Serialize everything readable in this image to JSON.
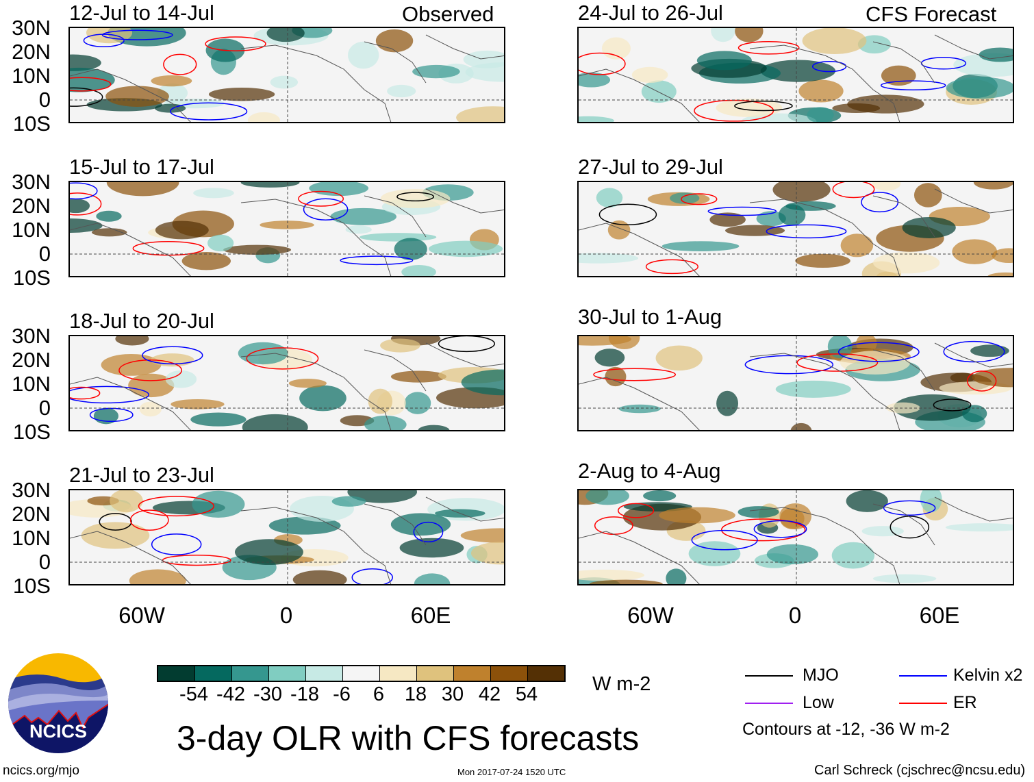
{
  "header": {
    "observed_label": "Observed",
    "forecast_label": "CFS Forecast"
  },
  "panels_left": [
    {
      "title": "12-Jul to 14-Jul"
    },
    {
      "title": "15-Jul to 17-Jul"
    },
    {
      "title": "18-Jul to 20-Jul"
    },
    {
      "title": "21-Jul to 23-Jul"
    }
  ],
  "panels_right": [
    {
      "title": "24-Jul to 26-Jul"
    },
    {
      "title": "27-Jul to 29-Jul"
    },
    {
      "title": "30-Jul to 1-Aug"
    },
    {
      "title": "2-Aug to 4-Aug"
    }
  ],
  "y_axis": [
    "30N",
    "20N",
    "10N",
    "0",
    "10S"
  ],
  "x_axis": [
    "60W",
    "0",
    "60E"
  ],
  "colorbar": {
    "colors": [
      "#023c30",
      "#05695f",
      "#35978f",
      "#80cdc1",
      "#c7eae5",
      "#f5f5f5",
      "#f6e8c3",
      "#dfc27d",
      "#bf812d",
      "#8c510a",
      "#543005"
    ],
    "labels": [
      "-54",
      "-42",
      "-30",
      "-18",
      "-6",
      "6",
      "18",
      "30",
      "42",
      "54"
    ],
    "units": "W m-2"
  },
  "legend": {
    "items": [
      {
        "label": "MJO",
        "color": "#000000"
      },
      {
        "label": "Low",
        "color": "#a020f0"
      },
      {
        "label": "Kelvin x2",
        "color": "#0000ff"
      },
      {
        "label": "ER",
        "color": "#ff0000"
      }
    ],
    "note": "Contours at -12, -36 W m-2"
  },
  "logo": {
    "text": "NCICS"
  },
  "footer": {
    "title": "3-day OLR with CFS forecasts",
    "url": "ncics.org/mjo",
    "timestamp": "Mon 2017-07-24 1520 UTC",
    "author": "Carl Schreck (cjschrec@ncsu.edu)"
  }
}
